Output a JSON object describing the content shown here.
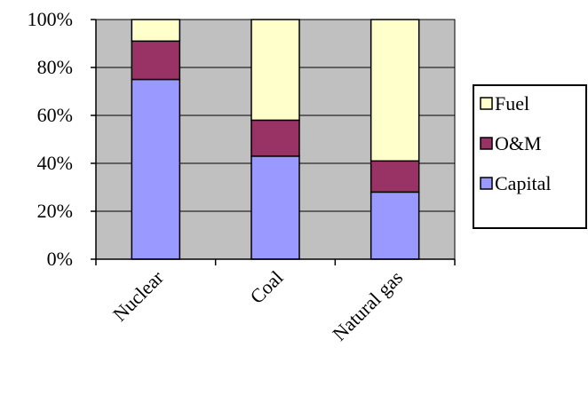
{
  "chart_data": {
    "type": "bar",
    "stacked": true,
    "normalized": true,
    "title": "",
    "xlabel": "",
    "ylabel": "",
    "categories": [
      "Nuclear",
      "Coal",
      "Natural gas"
    ],
    "series": [
      {
        "name": "Capital",
        "values": [
          75,
          43,
          28
        ],
        "color": "#9999ff"
      },
      {
        "name": "O&M",
        "values": [
          16,
          15,
          13
        ],
        "color": "#993366"
      },
      {
        "name": "Fuel",
        "values": [
          9,
          42,
          59
        ],
        "color": "#ffffcc"
      }
    ],
    "ylim": [
      0,
      100
    ],
    "yticks": [
      "0%",
      "20%",
      "40%",
      "60%",
      "80%",
      "100%"
    ],
    "grid": true,
    "plot_background": "#c0c0c0",
    "legend": {
      "placement": "right",
      "order": [
        "Fuel",
        "O&M",
        "Capital"
      ]
    }
  }
}
